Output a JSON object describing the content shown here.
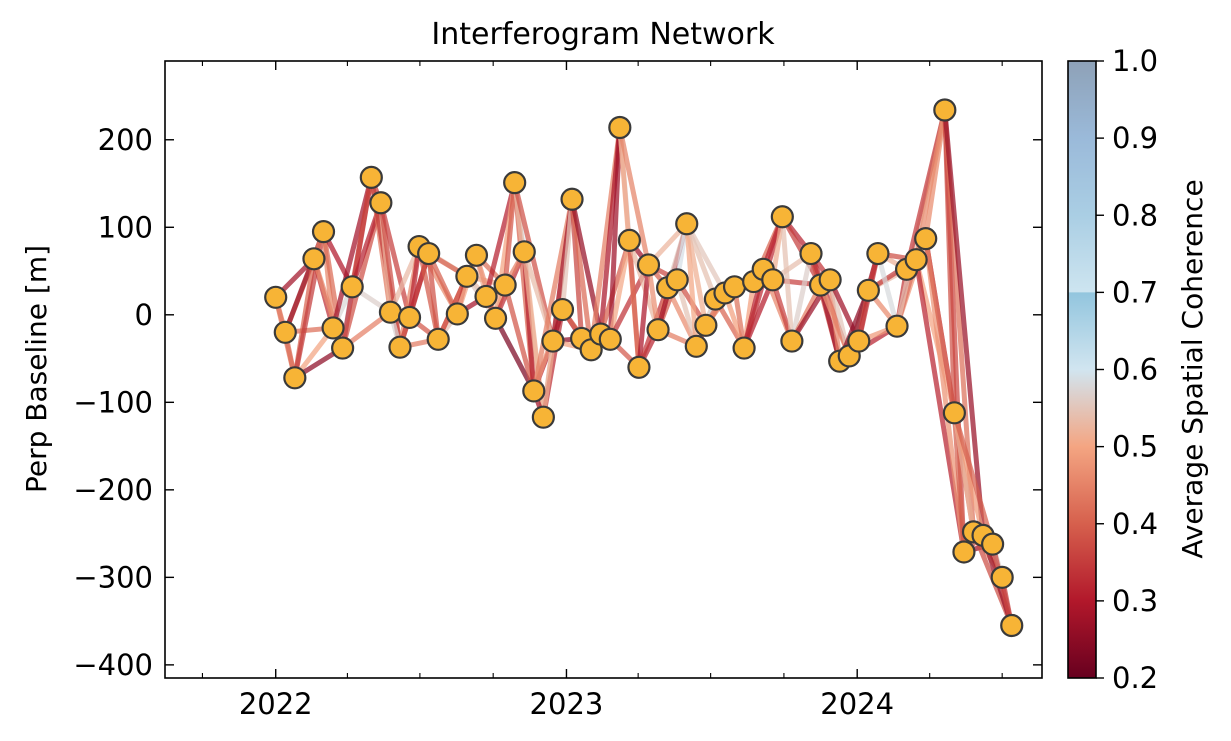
{
  "chart_data": {
    "type": "scatter",
    "title": "Interferogram Network",
    "ylabel": "Perp Baseline [m]",
    "xlabel": "",
    "xlim": [
      "2021-08-15",
      "2024-08-20"
    ],
    "ylim": [
      -415,
      290
    ],
    "x_ticks": [
      {
        "date": "2022-01-01",
        "label": "2022"
      },
      {
        "date": "2023-01-01",
        "label": "2023"
      },
      {
        "date": "2024-01-01",
        "label": "2024"
      }
    ],
    "y_ticks": [
      -400,
      -300,
      -200,
      -100,
      0,
      100,
      200
    ],
    "y_tick_labels": [
      "−400",
      "−300",
      "−200",
      "−100",
      "0",
      "100",
      "200"
    ],
    "grid": false,
    "colorbar": {
      "label": "Average Spatial Coherence",
      "range": [
        0.2,
        1.0
      ],
      "ticks": [
        "0.2",
        "0.3",
        "0.4",
        "0.5",
        "0.6",
        "0.7",
        "0.8",
        "0.9",
        "1.0"
      ],
      "colormap": "RdBu",
      "colors": [
        "#67001f",
        "#b2182b",
        "#d6604d",
        "#f4a582",
        "#d1e5f0",
        "#92c5de",
        "#4393c3",
        "#2166ac",
        "#053061"
      ],
      "greyed_above": 0.7
    },
    "marker_color": "#f7b436",
    "marker_edge_color": "#3a3a3a",
    "acquisitions": [
      {
        "date": "2022-01-01",
        "bperp": 20
      },
      {
        "date": "2022-01-13",
        "bperp": -20
      },
      {
        "date": "2022-01-25",
        "bperp": -72
      },
      {
        "date": "2022-02-18",
        "bperp": 64
      },
      {
        "date": "2022-03-02",
        "bperp": 95
      },
      {
        "date": "2022-03-14",
        "bperp": -15
      },
      {
        "date": "2022-03-26",
        "bperp": -38
      },
      {
        "date": "2022-04-07",
        "bperp": 32
      },
      {
        "date": "2022-05-01",
        "bperp": 157
      },
      {
        "date": "2022-05-13",
        "bperp": 128
      },
      {
        "date": "2022-05-25",
        "bperp": 3
      },
      {
        "date": "2022-06-06",
        "bperp": -37
      },
      {
        "date": "2022-06-18",
        "bperp": -3
      },
      {
        "date": "2022-06-30",
        "bperp": 78
      },
      {
        "date": "2022-07-12",
        "bperp": 70
      },
      {
        "date": "2022-07-24",
        "bperp": -28
      },
      {
        "date": "2022-08-17",
        "bperp": 1
      },
      {
        "date": "2022-08-29",
        "bperp": 44
      },
      {
        "date": "2022-09-10",
        "bperp": 68
      },
      {
        "date": "2022-09-22",
        "bperp": 21
      },
      {
        "date": "2022-10-04",
        "bperp": -4
      },
      {
        "date": "2022-10-16",
        "bperp": 34
      },
      {
        "date": "2022-10-28",
        "bperp": 151
      },
      {
        "date": "2022-11-09",
        "bperp": 72
      },
      {
        "date": "2022-11-21",
        "bperp": -87
      },
      {
        "date": "2022-12-03",
        "bperp": -117
      },
      {
        "date": "2022-12-15",
        "bperp": -30
      },
      {
        "date": "2022-12-27",
        "bperp": 6
      },
      {
        "date": "2023-01-08",
        "bperp": 132
      },
      {
        "date": "2023-01-20",
        "bperp": -27
      },
      {
        "date": "2023-02-01",
        "bperp": -40
      },
      {
        "date": "2023-02-13",
        "bperp": -22
      },
      {
        "date": "2023-02-25",
        "bperp": -28
      },
      {
        "date": "2023-03-09",
        "bperp": 214
      },
      {
        "date": "2023-03-21",
        "bperp": 85
      },
      {
        "date": "2023-04-02",
        "bperp": -60
      },
      {
        "date": "2023-04-14",
        "bperp": 57
      },
      {
        "date": "2023-04-26",
        "bperp": -17
      },
      {
        "date": "2023-05-08",
        "bperp": 31
      },
      {
        "date": "2023-05-20",
        "bperp": 40
      },
      {
        "date": "2023-06-01",
        "bperp": 104
      },
      {
        "date": "2023-06-13",
        "bperp": -36
      },
      {
        "date": "2023-06-25",
        "bperp": -12
      },
      {
        "date": "2023-07-07",
        "bperp": 18
      },
      {
        "date": "2023-07-19",
        "bperp": 25
      },
      {
        "date": "2023-07-31",
        "bperp": 32
      },
      {
        "date": "2023-08-12",
        "bperp": -38
      },
      {
        "date": "2023-08-24",
        "bperp": 38
      },
      {
        "date": "2023-09-05",
        "bperp": 52
      },
      {
        "date": "2023-09-17",
        "bperp": 40
      },
      {
        "date": "2023-09-29",
        "bperp": 112
      },
      {
        "date": "2023-10-11",
        "bperp": -30
      },
      {
        "date": "2023-11-04",
        "bperp": 70
      },
      {
        "date": "2023-11-16",
        "bperp": 34
      },
      {
        "date": "2023-11-28",
        "bperp": 40
      },
      {
        "date": "2023-12-10",
        "bperp": -53
      },
      {
        "date": "2023-12-22",
        "bperp": -47
      },
      {
        "date": "2024-01-03",
        "bperp": -30
      },
      {
        "date": "2024-01-15",
        "bperp": 28
      },
      {
        "date": "2024-01-27",
        "bperp": 70
      },
      {
        "date": "2024-02-20",
        "bperp": -13
      },
      {
        "date": "2024-03-03",
        "bperp": 52
      },
      {
        "date": "2024-03-15",
        "bperp": 63
      },
      {
        "date": "2024-03-27",
        "bperp": 87
      },
      {
        "date": "2024-04-20",
        "bperp": 234
      },
      {
        "date": "2024-05-02",
        "bperp": -112
      },
      {
        "date": "2024-05-14",
        "bperp": -271
      },
      {
        "date": "2024-05-26",
        "bperp": -248
      },
      {
        "date": "2024-06-07",
        "bperp": -252
      },
      {
        "date": "2024-06-19",
        "bperp": -262
      },
      {
        "date": "2024-07-01",
        "bperp": -300
      },
      {
        "date": "2024-07-13",
        "bperp": -355
      }
    ]
  }
}
